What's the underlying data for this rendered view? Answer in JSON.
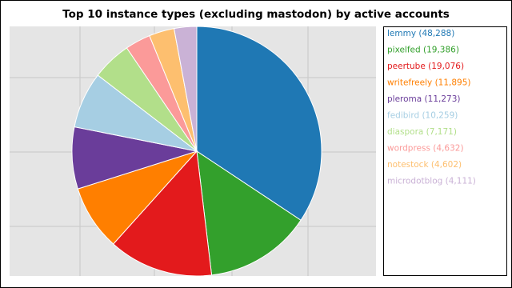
{
  "chart_data": {
    "type": "pie",
    "title": "Top 10 instance types (excluding mastodon) by active accounts",
    "categories": [
      "lemmy (48,288)",
      "pixelfed (19,386)",
      "peertube (19,076)",
      "writefreely (11,895)",
      "pleroma (11,273)",
      "fedibird (10,259)",
      "diaspora (7,171)",
      "wordpress (4,632)",
      "notestock (4,602)",
      "microdotblog (4,111)"
    ],
    "values": [
      48288,
      19386,
      19076,
      11895,
      11273,
      10259,
      7171,
      4632,
      4602,
      4111
    ],
    "colors": [
      "#1f78b4",
      "#33a02c",
      "#e31a1c",
      "#ff7f00",
      "#6a3d9a",
      "#a6cee3",
      "#b2df8a",
      "#fb9a99",
      "#fdbf6f",
      "#cab2d6"
    ],
    "legend": "right"
  }
}
